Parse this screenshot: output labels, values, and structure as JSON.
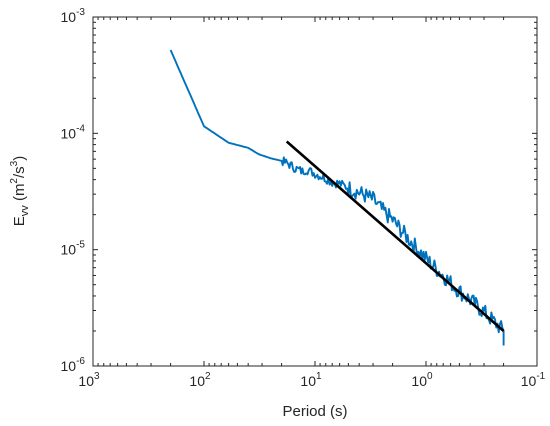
{
  "chart_data": {
    "type": "line",
    "title": "",
    "xlabel": "Period (s)",
    "ylabel": {
      "base": "E",
      "sub": "vv",
      "units_open": " (m",
      "units_sup1": "2",
      "units_mid": "/s",
      "units_sup2": "3",
      "units_close": ")"
    },
    "x_scale": "log",
    "x_direction": "reversed",
    "y_scale": "log",
    "xlim": [
      1000,
      0.1
    ],
    "ylim": [
      1e-06,
      0.001
    ],
    "x_ticks": [
      {
        "value": 1000,
        "base": "10",
        "exp": "3"
      },
      {
        "value": 100,
        "base": "10",
        "exp": "2"
      },
      {
        "value": 10,
        "base": "10",
        "exp": "1"
      },
      {
        "value": 1,
        "base": "10",
        "exp": "0"
      },
      {
        "value": 0.1,
        "base": "10",
        "exp": "-1"
      }
    ],
    "y_ticks": [
      {
        "value": 1e-06,
        "base": "10",
        "exp": "-6"
      },
      {
        "value": 1e-05,
        "base": "10",
        "exp": "-5"
      },
      {
        "value": 0.0001,
        "base": "10",
        "exp": "-4"
      },
      {
        "value": 0.001,
        "base": "10",
        "exp": "-3"
      }
    ],
    "grid": false,
    "series": [
      {
        "color": "#0072bd",
        "style": "noisy",
        "x": [
          200,
          100,
          60,
          40,
          32,
          25,
          20,
          17,
          15,
          13,
          12,
          10,
          8,
          7,
          6,
          5,
          4,
          3,
          2.5,
          2,
          1.5,
          1.2,
          1,
          0.8,
          0.6,
          0.5,
          0.4,
          0.3,
          0.2
        ],
        "y": [
          0.00052,
          0.000115,
          8.3e-05,
          7.5e-05,
          6.6e-05,
          6.1e-05,
          5.8e-05,
          5.4e-05,
          5e-05,
          4.7e-05,
          4.9e-05,
          4.5e-05,
          4.1e-05,
          3.8e-05,
          3.7e-05,
          3.4e-05,
          3.1e-05,
          2.7e-05,
          2.2e-05,
          1.8e-05,
          1.3e-05,
          1.02e-05,
          8.4e-06,
          6.8e-06,
          5.2e-06,
          4.4e-06,
          3.7e-06,
          2.9e-06,
          2e-06
        ]
      },
      {
        "color": "#000000",
        "style": "smooth",
        "x": [
          18,
          0.2
        ],
        "y": [
          8.5e-05,
          2e-06
        ]
      }
    ]
  }
}
